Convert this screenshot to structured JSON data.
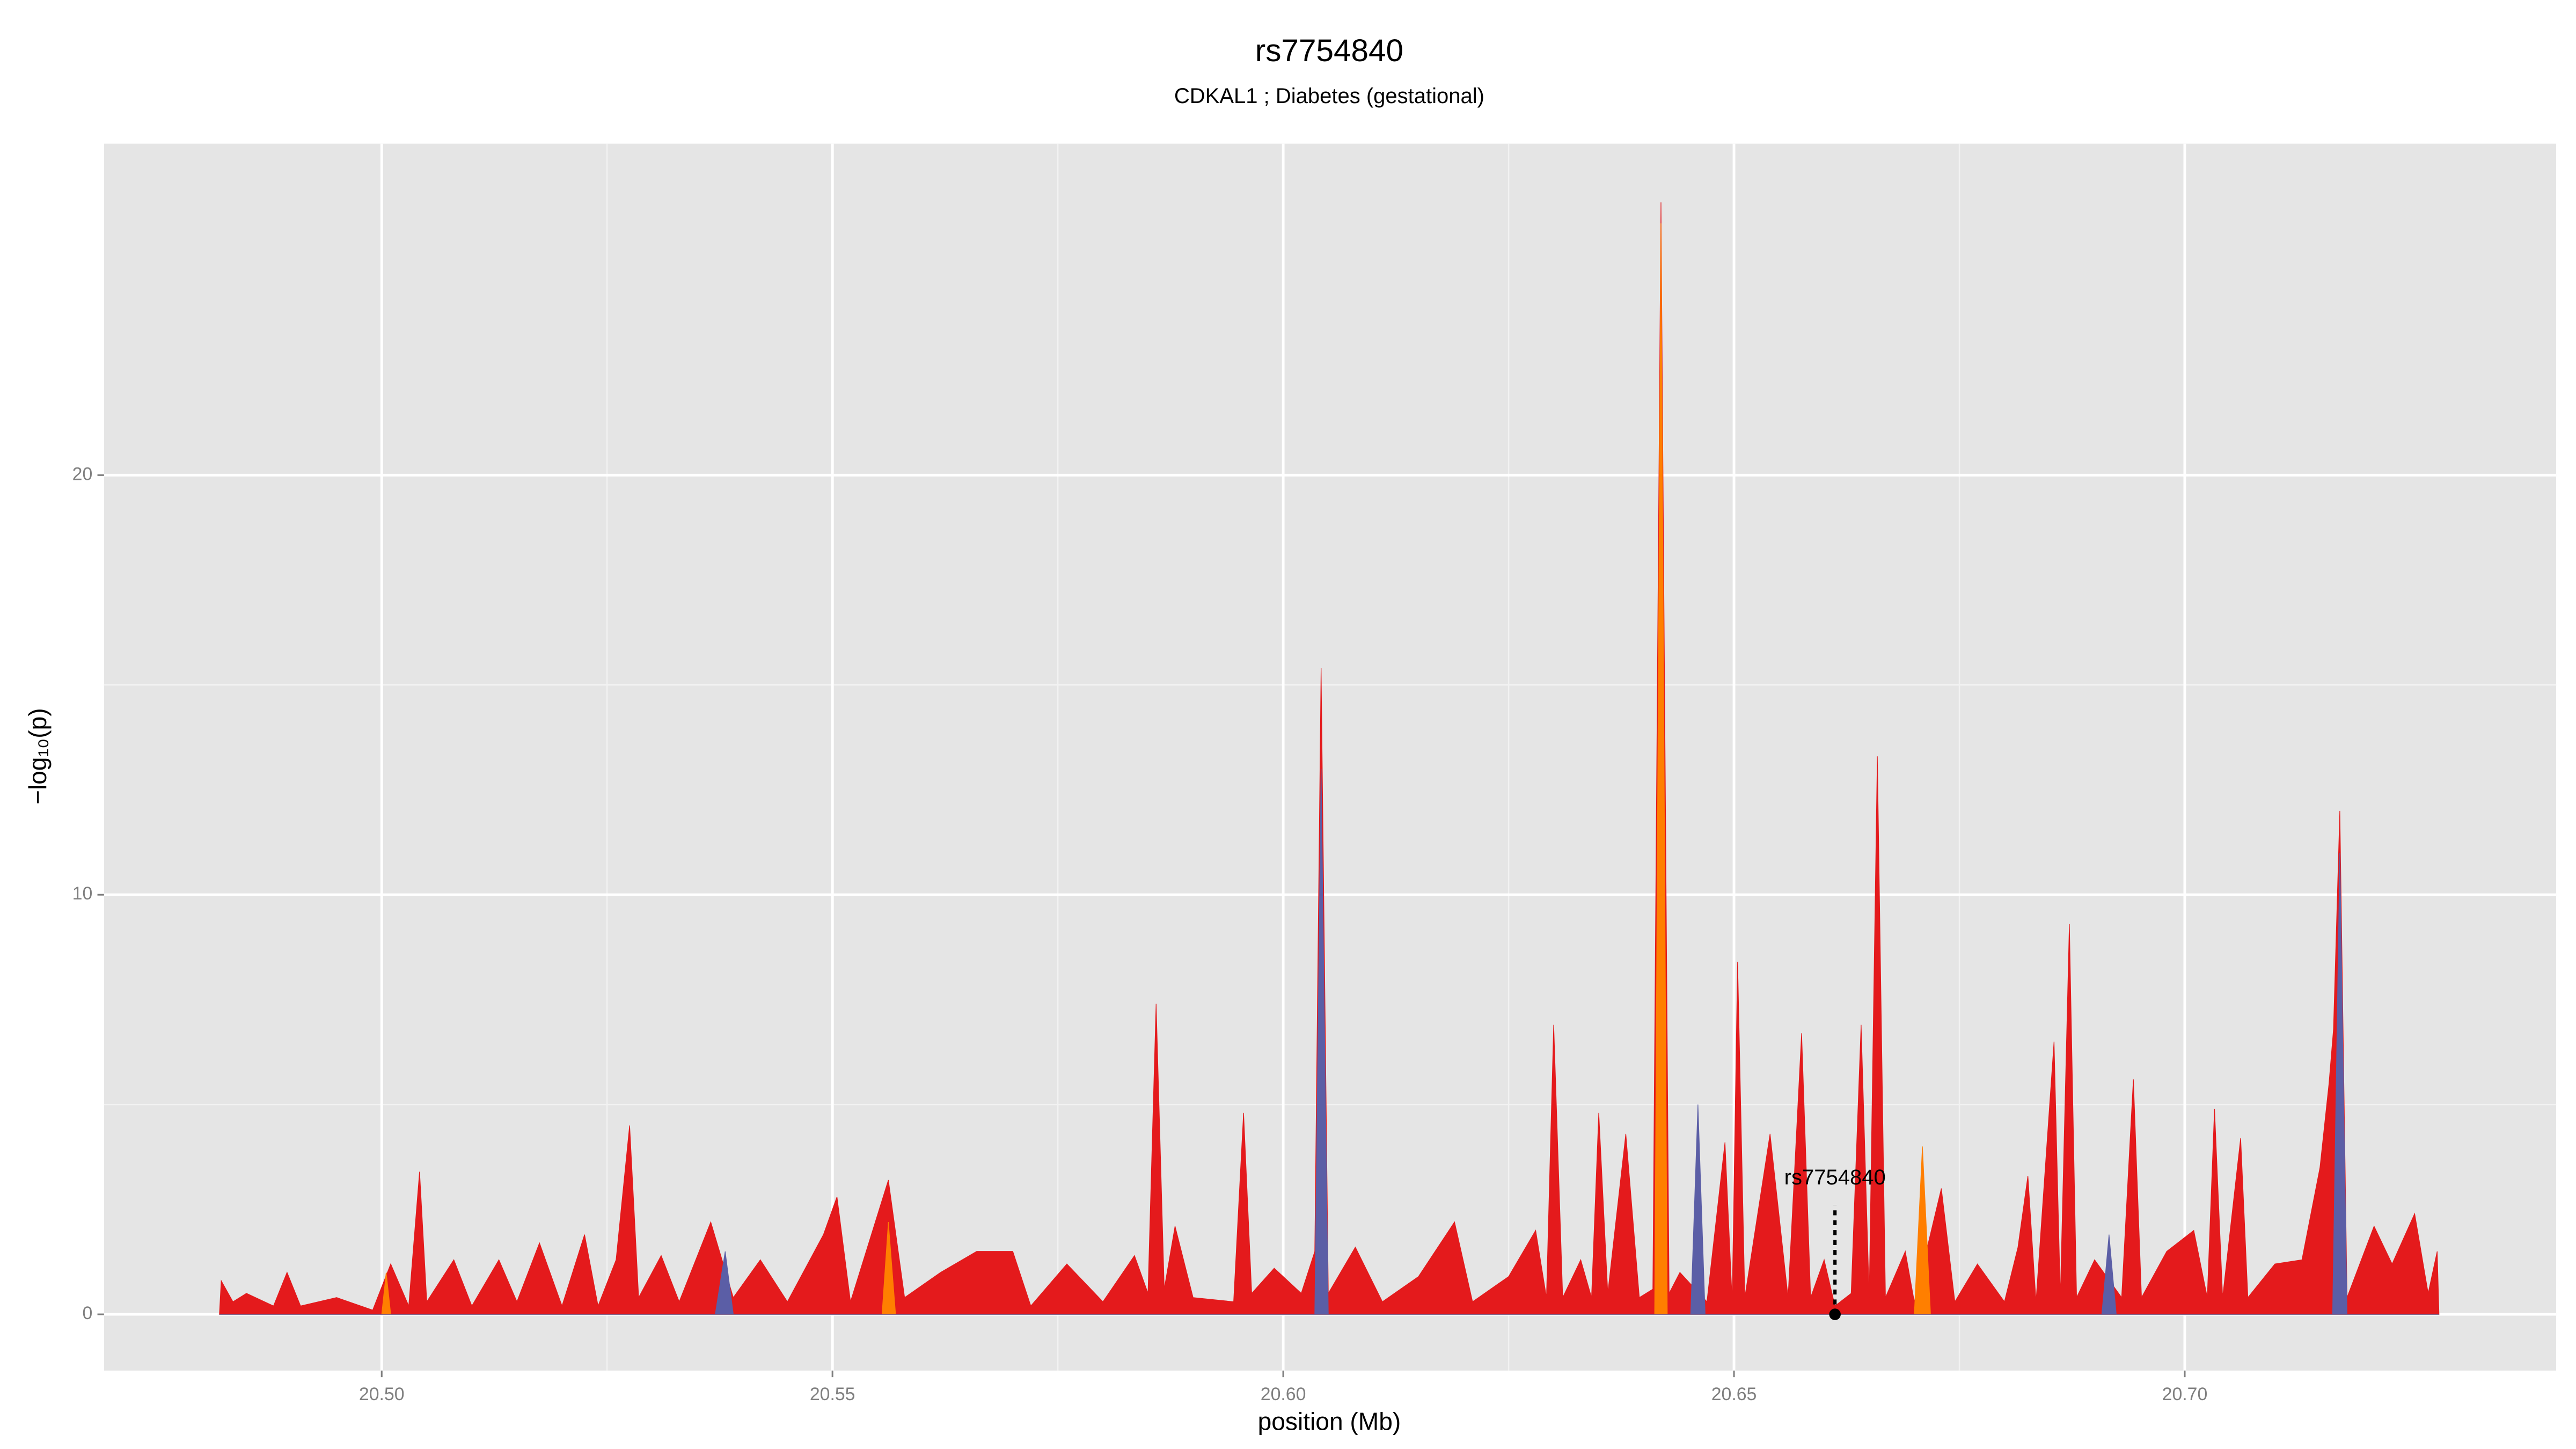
{
  "chart_data": {
    "type": "area",
    "title": "rs7754840",
    "subtitle": "CDKAL1 ; Diabetes (gestational)",
    "xlabel": "position (Mb)",
    "ylabel": "−log₁₀(p)",
    "xlim": [
      20.4692,
      20.7412
    ],
    "ylim": [
      -1.34,
      27.9
    ],
    "xticks": [
      {
        "value": 20.5,
        "label": "20.50"
      },
      {
        "value": 20.55,
        "label": "20.55"
      },
      {
        "value": 20.6,
        "label": "20.60"
      },
      {
        "value": 20.65,
        "label": "20.65"
      },
      {
        "value": 20.7,
        "label": "20.70"
      }
    ],
    "yticks": [
      0,
      10,
      20
    ],
    "grid": true,
    "minor_grid": true,
    "series": [
      {
        "color": "#e41a1c",
        "x": [
          20.482,
          20.4822,
          20.4835,
          20.485,
          20.488,
          20.4895,
          20.491,
          20.495,
          20.499,
          20.501,
          20.503,
          20.5042,
          20.505,
          20.508,
          20.51,
          20.513,
          20.515,
          20.5175,
          20.52,
          20.5225,
          20.524,
          20.526,
          20.5275,
          20.5285,
          20.531,
          20.533,
          20.5365,
          20.539,
          20.542,
          20.545,
          20.549,
          20.5505,
          20.552,
          20.5562,
          20.558,
          20.562,
          20.566,
          20.57,
          20.572,
          20.576,
          20.58,
          20.5835,
          20.585,
          20.5859,
          20.5868,
          20.588,
          20.59,
          20.5945,
          20.5956,
          20.5965,
          20.599,
          20.602,
          20.6035,
          20.6042,
          20.605,
          20.608,
          20.611,
          20.615,
          20.619,
          20.621,
          20.625,
          20.628,
          20.6292,
          20.63,
          20.631,
          20.633,
          20.6342,
          20.635,
          20.636,
          20.638,
          20.6395,
          20.641,
          20.6419,
          20.6428,
          20.644,
          20.647,
          20.649,
          20.6498,
          20.6504,
          20.6512,
          20.654,
          20.656,
          20.6575,
          20.6585,
          20.66,
          20.6612,
          20.663,
          20.6641,
          20.665,
          20.6659,
          20.6668,
          20.669,
          20.67,
          20.673,
          20.6745,
          20.677,
          20.68,
          20.6815,
          20.6826,
          20.6835,
          20.6855,
          20.6862,
          20.6872,
          20.688,
          20.69,
          20.693,
          20.6943,
          20.6952,
          20.698,
          20.701,
          20.7025,
          20.7033,
          20.7042,
          20.7062,
          20.707,
          20.71,
          20.713,
          20.715,
          20.716,
          20.7165,
          20.7172,
          20.718,
          20.721,
          20.723,
          20.7255,
          20.727,
          20.728,
          20.7282
        ],
        "values": [
          0,
          0.8,
          0.3,
          0.5,
          0.2,
          1.0,
          0.2,
          0.4,
          0.1,
          1.2,
          0.2,
          3.4,
          0.3,
          1.3,
          0.2,
          1.3,
          0.3,
          1.7,
          0.2,
          1.9,
          0.2,
          1.3,
          4.5,
          0.4,
          1.4,
          0.3,
          2.2,
          0.4,
          1.3,
          0.3,
          1.9,
          2.8,
          0.3,
          3.2,
          0.4,
          1.0,
          1.5,
          1.5,
          0.2,
          1.2,
          0.3,
          1.4,
          0.5,
          7.4,
          0.6,
          2.1,
          0.4,
          0.3,
          4.8,
          0.5,
          1.1,
          0.5,
          1.5,
          15.4,
          0.5,
          1.6,
          0.3,
          0.9,
          2.2,
          0.3,
          0.9,
          2.0,
          0.4,
          6.9,
          0.4,
          1.3,
          0.4,
          4.8,
          0.5,
          4.3,
          0.4,
          0.6,
          26.5,
          0.5,
          1.0,
          0.3,
          4.1,
          0.3,
          8.4,
          0.4,
          4.3,
          0.4,
          6.7,
          0.4,
          1.3,
          0.2,
          0.5,
          6.9,
          0.4,
          13.3,
          0.4,
          1.5,
          0.3,
          3.0,
          0.3,
          1.2,
          0.3,
          1.6,
          3.3,
          0.3,
          6.5,
          0.4,
          9.3,
          0.4,
          1.3,
          0.4,
          5.6,
          0.4,
          1.5,
          2.0,
          0.4,
          4.9,
          0.4,
          4.2,
          0.4,
          1.2,
          1.3,
          3.5,
          5.5,
          6.8,
          12.0,
          0.4,
          2.1,
          1.2,
          2.4,
          0.5,
          1.5,
          0
        ]
      },
      {
        "color": "#ff7f00",
        "x": [
          20.482,
          20.5,
          20.5005,
          20.501,
          20.5555,
          20.5562,
          20.557,
          20.6412,
          20.6419,
          20.6426,
          20.67,
          20.6709,
          20.6718,
          20.7282
        ],
        "values": [
          0,
          0,
          1.0,
          0,
          0,
          2.2,
          0,
          0,
          26.0,
          0,
          0,
          4.0,
          0,
          0
        ]
      },
      {
        "color": "#5b5ea6",
        "x": [
          20.482,
          20.537,
          20.5381,
          20.539,
          20.6035,
          20.6042,
          20.605,
          20.6452,
          20.646,
          20.6468,
          20.6908,
          20.6916,
          20.6924,
          20.7164,
          20.7172,
          20.718,
          20.7282
        ],
        "values": [
          0,
          0,
          1.5,
          0,
          0,
          13.0,
          0,
          0,
          5.0,
          0,
          0,
          1.9,
          0,
          0,
          11.0,
          0,
          0
        ]
      }
    ],
    "annotation": {
      "text": "rs7754840",
      "x": 20.6612,
      "y": 0,
      "line_top": 2.6
    }
  }
}
